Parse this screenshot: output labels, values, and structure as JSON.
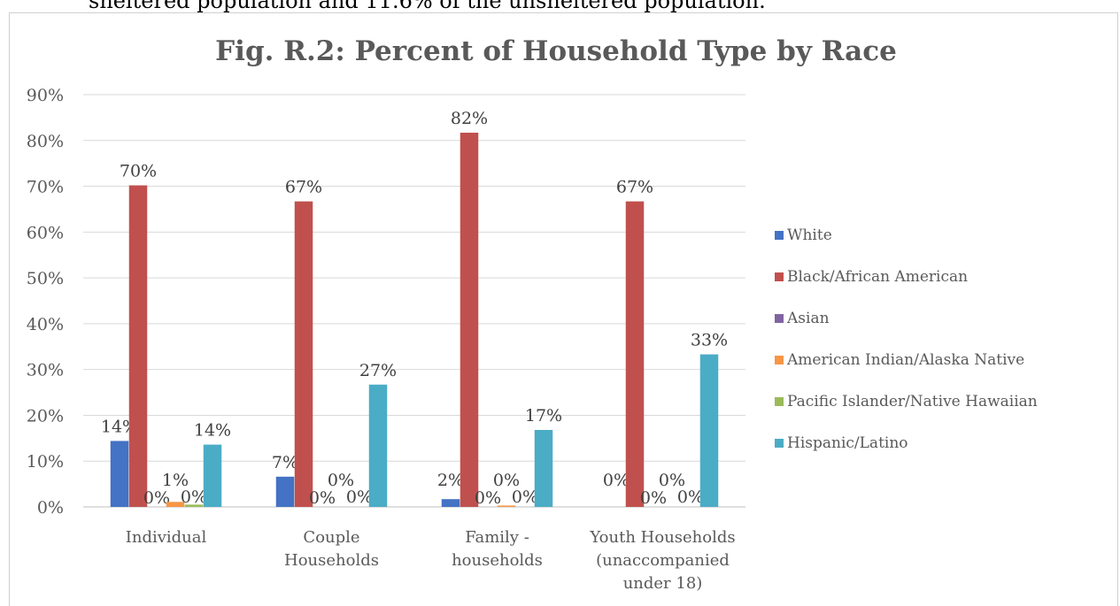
{
  "context_text": "sheltered population and 11.6% of the unsheltered population.",
  "chart_data": {
    "type": "bar",
    "title": "Fig. R.2: Percent of Household Type by Race",
    "xlabel": "",
    "ylabel": "",
    "ylim": [
      0,
      90
    ],
    "yticks": [
      0,
      10,
      20,
      30,
      40,
      50,
      60,
      70,
      80,
      90
    ],
    "ytick_labels": [
      "0%",
      "10%",
      "20%",
      "30%",
      "40%",
      "50%",
      "60%",
      "70%",
      "80%",
      "90%"
    ],
    "grid": true,
    "legend_position": "right",
    "categories": [
      [
        "Individual"
      ],
      [
        "Couple",
        "Households"
      ],
      [
        "Family -",
        "households"
      ],
      [
        "Youth Households",
        "(unaccompanied",
        "under 18)"
      ]
    ],
    "series": [
      {
        "name": "White",
        "color": "#4472C4",
        "values": [
          14.4,
          6.6,
          1.7,
          0
        ],
        "labels": [
          "14%",
          "7%",
          "2%",
          "0%"
        ]
      },
      {
        "name": "Black/African American",
        "color": "#C0504D",
        "values": [
          70.2,
          66.7,
          81.7,
          66.7
        ],
        "labels": [
          "70%",
          "67%",
          "82%",
          "67%"
        ]
      },
      {
        "name": "Asian",
        "color": "#8064A2",
        "values": [
          0,
          0,
          0,
          0
        ],
        "labels": [
          "0%",
          "0%",
          "0%",
          "0%"
        ]
      },
      {
        "name": "American Indian/Alaska Native",
        "color": "#F79646",
        "values": [
          1.1,
          0,
          0.3,
          0
        ],
        "labels": [
          "1%",
          "0%",
          "0%",
          "0%"
        ]
      },
      {
        "name": "Pacific Islander/Native Hawaiian",
        "color": "#9BBB59",
        "values": [
          0.5,
          0,
          0,
          0
        ],
        "labels": [
          "0%",
          "0%",
          "0%",
          "0%"
        ]
      },
      {
        "name": "Hispanic/Latino",
        "color": "#4BACC6",
        "values": [
          13.6,
          26.7,
          16.8,
          33.3
        ],
        "labels": [
          "14%",
          "27%",
          "17%",
          "33%"
        ]
      }
    ]
  }
}
